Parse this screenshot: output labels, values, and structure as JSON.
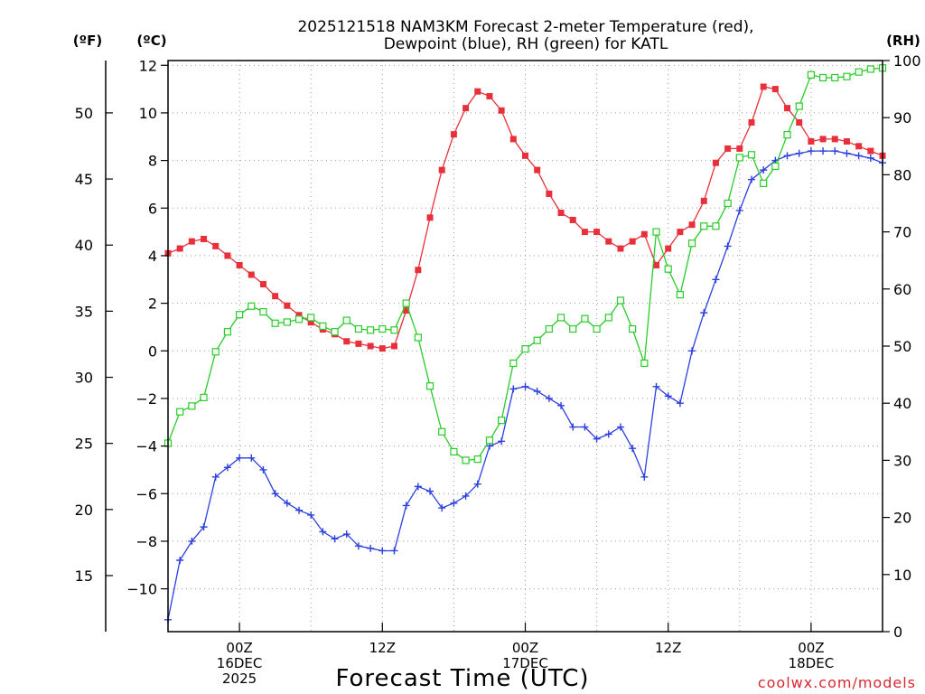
{
  "chart_data": {
    "type": "line",
    "title_line1": "2025121518 NAM3KM Forecast 2-meter Temperature (red),",
    "title_line2": "Dewpoint (blue), RH (green) for KATL",
    "unit_f": "(ºF)",
    "unit_c": "(ºC)",
    "unit_rh": "(RH)",
    "xlabel": "Forecast Time (UTC)",
    "credit": "coolwx.com/models",
    "x_range_hours": [
      0,
      60
    ],
    "y_celsius_range": [
      -11.8,
      12.2
    ],
    "y_rh_range": [
      0,
      100
    ],
    "y_celsius_ticks": [
      "12",
      "10",
      "8",
      "6",
      "4",
      "2",
      "0",
      "−2",
      "−4",
      "−6",
      "−8",
      "−10"
    ],
    "y_celsius_tick_values": [
      12,
      10,
      8,
      6,
      4,
      2,
      0,
      -2,
      -4,
      -6,
      -8,
      -10
    ],
    "y_fahrenheit_ticks": [
      "50",
      "45",
      "40",
      "35",
      "30",
      "25",
      "20",
      "15"
    ],
    "y_fahrenheit_tick_values": [
      50,
      45,
      40,
      35,
      30,
      25,
      20,
      15
    ],
    "y_rh_ticks": [
      "100",
      "90",
      "80",
      "70",
      "60",
      "50",
      "40",
      "30",
      "20",
      "10",
      "0"
    ],
    "y_rh_tick_values": [
      100,
      90,
      80,
      70,
      60,
      50,
      40,
      30,
      20,
      10,
      0
    ],
    "x_ticks": [
      {
        "hour": 6,
        "line1": "00Z",
        "line2": "16DEC",
        "line3": "2025"
      },
      {
        "hour": 18,
        "line1": "12Z",
        "line2": "",
        "line3": ""
      },
      {
        "hour": 30,
        "line1": "00Z",
        "line2": "17DEC",
        "line3": ""
      },
      {
        "hour": 42,
        "line1": "12Z",
        "line2": "",
        "line3": ""
      },
      {
        "hour": 54,
        "line1": "00Z",
        "line2": "18DEC",
        "line3": ""
      }
    ],
    "series": [
      {
        "name": "2-meter Temperature",
        "axis": "celsius",
        "color": "#e8303a",
        "marker": "filled-square",
        "hours": [
          0,
          1,
          2,
          3,
          4,
          5,
          6,
          7,
          8,
          9,
          10,
          11,
          12,
          13,
          14,
          15,
          16,
          17,
          18,
          19,
          20,
          21,
          22,
          23,
          24,
          25,
          26,
          27,
          28,
          29,
          30,
          31,
          32,
          33,
          34,
          35,
          36,
          37,
          38,
          39,
          40,
          41,
          42,
          43,
          44,
          45,
          46,
          47,
          48,
          49,
          50,
          51,
          52,
          53,
          54,
          55,
          56,
          57,
          58,
          59,
          60
        ],
        "values": [
          4.1,
          4.3,
          4.6,
          4.7,
          4.4,
          4.0,
          3.6,
          3.2,
          2.8,
          2.3,
          1.9,
          1.5,
          1.2,
          0.9,
          0.7,
          0.4,
          0.3,
          0.2,
          0.1,
          0.2,
          1.7,
          3.4,
          5.6,
          7.6,
          9.1,
          10.2,
          10.9,
          10.7,
          10.1,
          8.9,
          8.2,
          7.6,
          6.6,
          5.8,
          5.5,
          5.0,
          5.0,
          4.6,
          4.3,
          4.6,
          4.9,
          3.6,
          4.3,
          5.0,
          5.3,
          6.3,
          7.9,
          8.5,
          8.5,
          9.6,
          11.1,
          11.0,
          10.2,
          9.6,
          8.8,
          8.9,
          8.9,
          8.8,
          8.6,
          8.4,
          8.2
        ]
      },
      {
        "name": "Dewpoint",
        "axis": "celsius",
        "color": "#2c40e0",
        "marker": "plus",
        "hours": [
          0,
          1,
          2,
          3,
          4,
          5,
          6,
          7,
          8,
          9,
          10,
          11,
          12,
          13,
          14,
          15,
          16,
          17,
          18,
          19,
          20,
          21,
          22,
          23,
          24,
          25,
          26,
          27,
          28,
          29,
          30,
          31,
          32,
          33,
          34,
          35,
          36,
          37,
          38,
          39,
          40,
          41,
          42,
          43,
          44,
          45,
          46,
          47,
          48,
          49,
          50,
          51,
          52,
          53,
          54,
          55,
          56,
          57,
          58,
          59,
          60
        ],
        "values": [
          -11.3,
          -8.8,
          -8.0,
          -7.4,
          -5.3,
          -4.9,
          -4.5,
          -4.5,
          -5.0,
          -6.0,
          -6.4,
          -6.7,
          -6.9,
          -7.6,
          -7.9,
          -7.7,
          -8.2,
          -8.3,
          -8.4,
          -8.4,
          -6.5,
          -5.7,
          -5.9,
          -6.6,
          -6.4,
          -6.1,
          -5.6,
          -4.0,
          -3.8,
          -1.6,
          -1.5,
          -1.7,
          -2.0,
          -2.3,
          -3.2,
          -3.2,
          -3.7,
          -3.5,
          -3.2,
          -4.1,
          -5.3,
          -1.5,
          -1.9,
          -2.2,
          0.0,
          1.6,
          3.0,
          4.4,
          5.9,
          7.2,
          7.6,
          8.0,
          8.2,
          8.3,
          8.4,
          8.4,
          8.4,
          8.3,
          8.2,
          8.1,
          7.9
        ]
      },
      {
        "name": "RH",
        "axis": "rh",
        "color": "#28cc28",
        "marker": "open-square",
        "hours": [
          0,
          1,
          2,
          3,
          4,
          5,
          6,
          7,
          8,
          9,
          10,
          11,
          12,
          13,
          14,
          15,
          16,
          17,
          18,
          19,
          20,
          21,
          22,
          23,
          24,
          25,
          26,
          27,
          28,
          29,
          30,
          31,
          32,
          33,
          34,
          35,
          36,
          37,
          38,
          39,
          40,
          41,
          42,
          43,
          44,
          45,
          46,
          47,
          48,
          49,
          50,
          51,
          52,
          53,
          54,
          55,
          56,
          57,
          58,
          59,
          60
        ],
        "values": [
          33,
          38.5,
          39.5,
          41,
          49,
          52.5,
          55.5,
          57,
          56,
          54,
          54.2,
          54.7,
          55,
          53.5,
          52.5,
          54.5,
          53,
          52.8,
          53,
          52.8,
          57.5,
          51.5,
          43,
          35,
          31.5,
          30,
          30.2,
          33.5,
          37,
          47,
          49.5,
          51,
          53,
          55,
          53,
          54.8,
          53,
          55,
          58,
          53,
          47,
          70,
          63.5,
          59,
          68,
          71,
          71,
          75,
          83,
          83.5,
          78.5,
          81.5,
          87,
          92,
          97.5,
          97,
          97,
          97.2,
          98,
          98.5,
          98.7
        ]
      }
    ]
  }
}
